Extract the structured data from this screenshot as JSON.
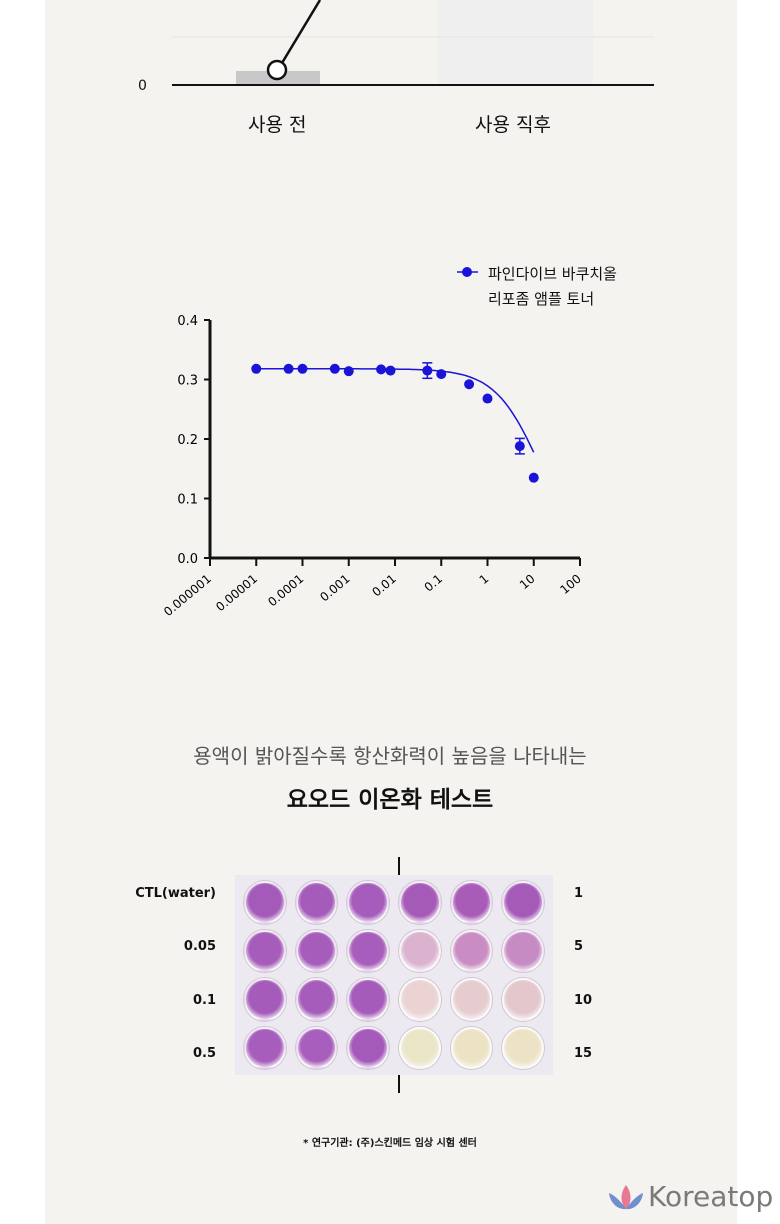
{
  "top_chart": {
    "y_tick": "0",
    "categories": [
      "사용 전",
      "사용 직후"
    ]
  },
  "chart_data": {
    "type": "scatter",
    "legend": "파인다이브 바쿠치올 리포좀 앰플 토너",
    "legend_lines": [
      "파인다이브 바쿠치올",
      "리포좀 앰플 토너"
    ],
    "legend_placement": "top-right",
    "x_scale": "log",
    "xlim": [
      1e-06,
      100
    ],
    "ylim": [
      0,
      0.4
    ],
    "x_ticks": [
      "0.000001",
      "0.00001",
      "0.0001",
      "0.001",
      "0.01",
      "0.1",
      "1",
      "10",
      "100"
    ],
    "y_ticks": [
      "0.0",
      "0.1",
      "0.2",
      "0.3",
      "0.4"
    ],
    "series": [
      {
        "name": "파인다이브 바쿠치올 리포좀 앰플 토너",
        "color": "#1a14d8",
        "x": [
          1e-05,
          5e-05,
          0.0001,
          0.0005,
          0.001,
          0.005,
          0.008,
          0.05,
          0.1,
          0.4,
          1,
          5,
          10
        ],
        "y": [
          0.318,
          0.318,
          0.318,
          0.318,
          0.314,
          0.317,
          0.315,
          0.315,
          0.309,
          0.292,
          0.268,
          0.188,
          0.135
        ],
        "err": [
          0,
          0,
          0,
          0,
          0,
          0,
          0,
          0.013,
          0,
          0,
          0,
          0.013,
          0
        ]
      }
    ]
  },
  "iodine": {
    "subtitle": "용액이 밝아질수록 항산화력이 높음을 나타내는",
    "title": "요오드 이온화 테스트",
    "left_labels": [
      "CTL(water)",
      "0.05",
      "0.1",
      "0.5"
    ],
    "right_labels": [
      "1",
      "5",
      "10",
      "15"
    ],
    "well_colors": [
      [
        "#a35ab8",
        "#a45bb9",
        "#a55cba",
        "#a55ab7",
        "#a85cb8",
        "#a55ab8"
      ],
      [
        "#a65cba",
        "#a65cbb",
        "#a75dbb",
        "#dcb3cf",
        "#c98dc4",
        "#c58bc2"
      ],
      [
        "#a45bb9",
        "#a55cba",
        "#a45bba",
        "#ead3d2",
        "#e6cccf",
        "#e4c7cc"
      ],
      [
        "#a65dbb",
        "#a75ebc",
        "#a35ab9",
        "#ece6c8",
        "#ebe3c3",
        "#ece3c6"
      ]
    ],
    "footnote": "* 연구기관: (주)스킨메드 임상 시험 센터"
  },
  "brand": {
    "name": "Koreatop"
  }
}
